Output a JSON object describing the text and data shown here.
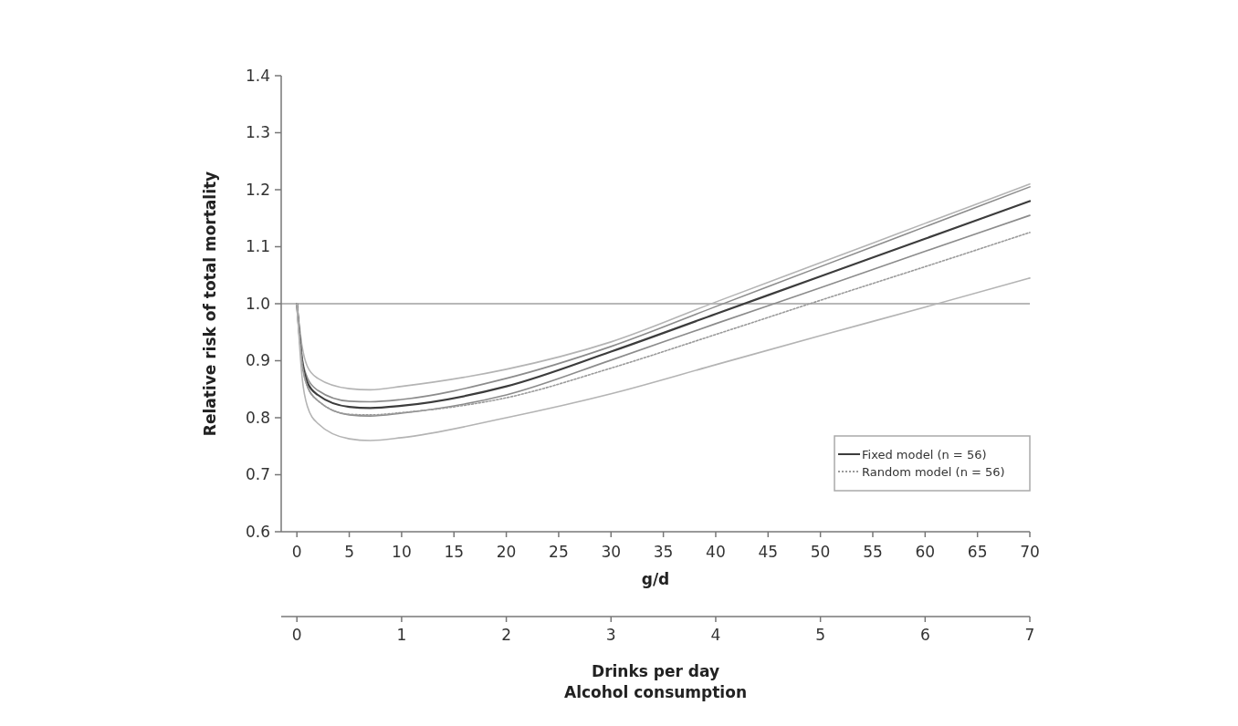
{
  "chart_data": {
    "type": "line",
    "xlabel": "g/d",
    "ylabel": "Relative risk of total mortality",
    "x2label": "Drinks per day",
    "annotations": [
      "Alcohol consumption"
    ],
    "xlim": [
      -1.5,
      70
    ],
    "xticks": [
      0,
      5,
      10,
      15,
      20,
      25,
      30,
      35,
      40,
      45,
      50,
      55,
      60,
      65,
      70
    ],
    "x2lim": [
      -0.15,
      7
    ],
    "x2ticks": [
      0,
      1,
      2,
      3,
      4,
      5,
      6,
      7
    ],
    "ylim": [
      0.6,
      1.4
    ],
    "yticks": [
      {
        "value": 0.6,
        "label": "0.6"
      },
      {
        "value": 0.7,
        "label": "0.7"
      },
      {
        "value": 0.8,
        "label": "0.8"
      },
      {
        "value": 0.9,
        "label": "0.9"
      },
      {
        "value": 1.0,
        "label": "1.0"
      },
      {
        "value": 1.1,
        "label": "1.1"
      },
      {
        "value": 1.2,
        "label": "1.2"
      },
      {
        "value": 1.3,
        "label": "1.3"
      },
      {
        "value": 1.4,
        "label": "1.4"
      }
    ],
    "x": [
      0,
      0.5,
      1,
      2,
      5,
      7,
      10,
      20,
      30,
      40,
      50,
      60,
      70
    ],
    "series": [
      {
        "color": "#b4b4b4",
        "values": [
          1.0,
          0.925,
          0.89,
          0.869,
          0.851,
          0.849,
          0.855,
          0.885,
          0.933,
          1.003,
          1.072,
          1.141,
          1.21
        ]
      },
      {
        "color": "#8c8c8c",
        "values": [
          1.0,
          0.905,
          0.87,
          0.848,
          0.829,
          0.828,
          0.832,
          0.869,
          0.925,
          0.995,
          1.065,
          1.135,
          1.205
        ]
      },
      {
        "name": "Fixed model (n = 56)",
        "color": "#3c3c3c",
        "values": [
          1.0,
          0.9,
          0.862,
          0.84,
          0.819,
          0.817,
          0.821,
          0.855,
          0.916,
          0.982,
          1.048,
          1.114,
          1.18
        ]
      },
      {
        "color": "#8c8c8c",
        "values": [
          1.0,
          0.895,
          0.855,
          0.83,
          0.805,
          0.803,
          0.808,
          0.84,
          0.901,
          0.965,
          1.028,
          1.092,
          1.155
        ]
      },
      {
        "name": "Random model (n = 56)",
        "color": "#9a9a9a",
        "line_style": "dotted",
        "values": [
          1.0,
          0.895,
          0.855,
          0.83,
          0.806,
          0.805,
          0.809,
          0.835,
          0.887,
          0.946,
          1.006,
          1.065,
          1.125
        ]
      },
      {
        "color": "#b4b4b4",
        "values": [
          1.0,
          0.87,
          0.82,
          0.79,
          0.763,
          0.76,
          0.765,
          0.8,
          0.842,
          0.893,
          0.944,
          0.994,
          1.045
        ]
      }
    ],
    "ref_lines": [
      {
        "axis": "y",
        "value": 1.0,
        "color": "#a0a0a0"
      }
    ],
    "legend": "bottom right",
    "marker": "none",
    "line_style": "solid",
    "grid": false
  }
}
